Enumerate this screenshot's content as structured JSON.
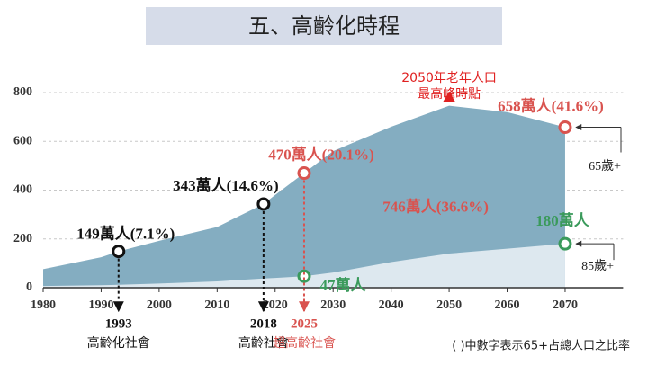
{
  "chart_data": {
    "type": "area",
    "title": "五、高齡化時程",
    "x": [
      1980,
      1990,
      1993,
      2000,
      2010,
      2018,
      2020,
      2025,
      2030,
      2040,
      2050,
      2060,
      2070
    ],
    "series": [
      {
        "name": "65歲+",
        "color": "#84adc1",
        "values": [
          76,
          125,
          149,
          192,
          249,
          343,
          380,
          470,
          560,
          660,
          746,
          720,
          658
        ],
        "value_labels": [
          null,
          null,
          "149萬人(7.1%)",
          null,
          null,
          "343萬人(14.6%)",
          null,
          "470萬人(20.1%)",
          null,
          null,
          "746萬人(36.6%)",
          null,
          "658萬人(41.6%)"
        ],
        "label_colors": [
          null,
          null,
          "#111111",
          null,
          null,
          "#111111",
          null,
          "#d9534f",
          null,
          null,
          "#d9534f",
          null,
          "#d9534f"
        ]
      },
      {
        "name": "85歲+",
        "color": "#dde8ef",
        "values": [
          7,
          10,
          12,
          17,
          26,
          38,
          40,
          47,
          62,
          105,
          140,
          160,
          180
        ],
        "value_labels": [
          null,
          null,
          null,
          null,
          null,
          null,
          null,
          "47萬人",
          null,
          null,
          null,
          null,
          "180萬人"
        ],
        "label_colors": [
          null,
          null,
          null,
          null,
          null,
          null,
          null,
          "#3a9a5b",
          null,
          null,
          null,
          null,
          "#3a9a5b"
        ]
      }
    ],
    "xlim": [
      1980,
      2080
    ],
    "xticks": [
      1980,
      1990,
      2000,
      2010,
      2020,
      2030,
      2040,
      2050,
      2060,
      2070
    ],
    "ylim": [
      0,
      800
    ],
    "yticks": [
      0,
      200,
      400,
      600,
      800
    ],
    "grid": true,
    "peak": {
      "x": 2050,
      "label": [
        "2050年老年人口",
        "最高峰時點"
      ],
      "color": "#e02020"
    },
    "milestones": [
      {
        "year": 1993,
        "label": "高齡化社會",
        "color": "#111111"
      },
      {
        "year": 2018,
        "label": "高齡社會",
        "color": "#111111"
      },
      {
        "year": 2025,
        "label": "超高齡社會",
        "color": "#d9534f"
      }
    ],
    "note": "( )中數字表示65+占總人口之比率"
  }
}
